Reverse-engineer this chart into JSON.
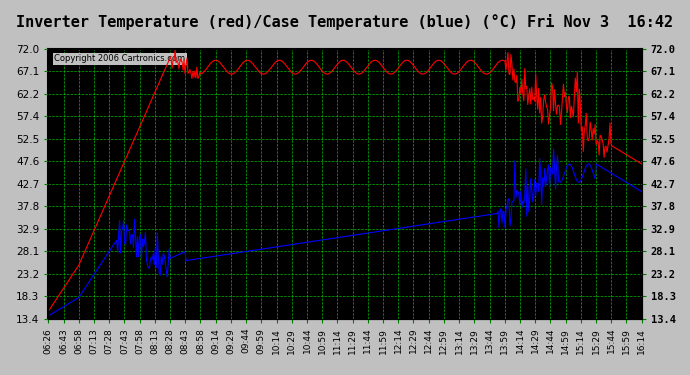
{
  "title": "Inverter Temperature (red)/Case Temperature (blue) (°C) Fri Nov 3  16:42",
  "copyright": "Copyright 2006 Cartronics.com",
  "bg_color": "#000000",
  "plot_bg_color": "#000000",
  "outer_bg_color": "#c0c0c0",
  "grid_color": "#00cc00",
  "red_color": "#ff0000",
  "blue_color": "#0000ff",
  "yticks": [
    13.4,
    18.3,
    23.2,
    28.1,
    32.9,
    37.8,
    42.7,
    47.6,
    52.5,
    57.4,
    62.2,
    67.1,
    72.0
  ],
  "ymin": 13.4,
  "ymax": 72.0,
  "xtick_labels": [
    "06:26",
    "06:43",
    "06:58",
    "07:13",
    "07:28",
    "07:43",
    "07:58",
    "08:13",
    "08:28",
    "08:43",
    "08:58",
    "09:14",
    "09:29",
    "09:44",
    "09:59",
    "10:14",
    "10:29",
    "10:44",
    "10:59",
    "11:14",
    "11:29",
    "11:44",
    "11:59",
    "12:14",
    "12:29",
    "12:44",
    "12:59",
    "13:14",
    "13:29",
    "13:44",
    "13:59",
    "14:14",
    "14:29",
    "14:44",
    "14:59",
    "15:14",
    "15:29",
    "15:44",
    "15:59",
    "16:14"
  ]
}
